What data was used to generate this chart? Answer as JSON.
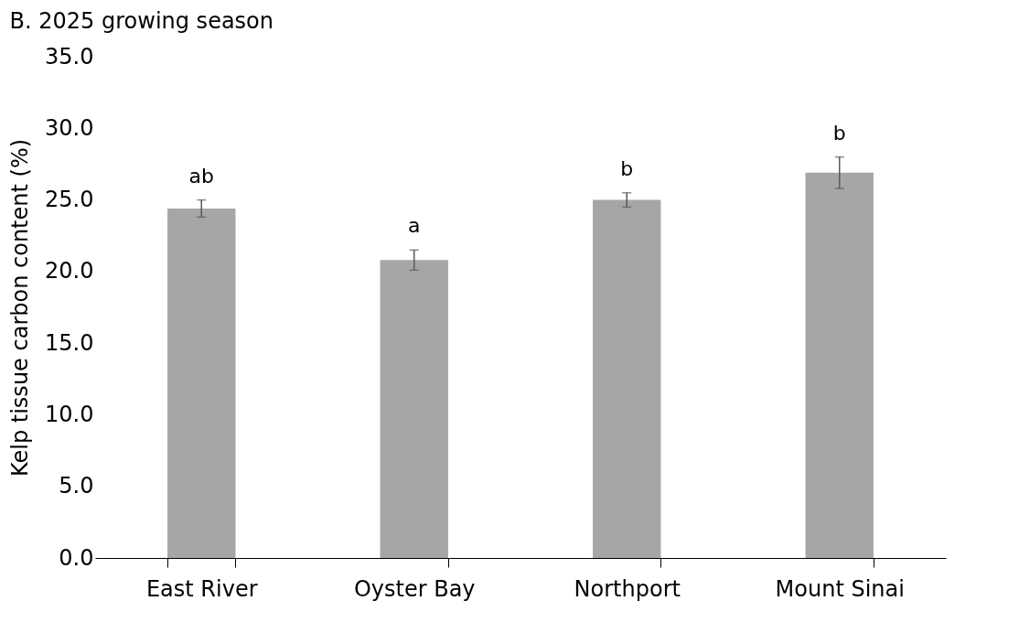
{
  "chart_data": {
    "type": "bar",
    "title": "B. 2025 growing season",
    "ylabel": "Kelp tissue carbon content (%)",
    "categories": [
      "East River",
      "Oyster Bay",
      "Northport",
      "Mount Sinai"
    ],
    "series": [
      {
        "color": "#a6a6a6",
        "values": [
          24.4,
          20.8,
          25.0,
          26.9
        ],
        "errors": [
          0.6,
          0.7,
          0.5,
          1.1
        ]
      }
    ],
    "ylim": [
      0,
      35
    ],
    "yticks": [
      {
        "value": 0,
        "label": "0.0"
      },
      {
        "value": 5,
        "label": "5.0"
      },
      {
        "value": 10,
        "label": "10.0"
      },
      {
        "value": 15,
        "label": "15.0"
      },
      {
        "value": 20,
        "label": "20.0"
      },
      {
        "value": 25,
        "label": "25.0"
      },
      {
        "value": 30,
        "label": "30.0"
      },
      {
        "value": 35,
        "label": "35.0"
      }
    ],
    "annotations": [
      "ab",
      "a",
      "b",
      "b"
    ],
    "grid": false
  }
}
